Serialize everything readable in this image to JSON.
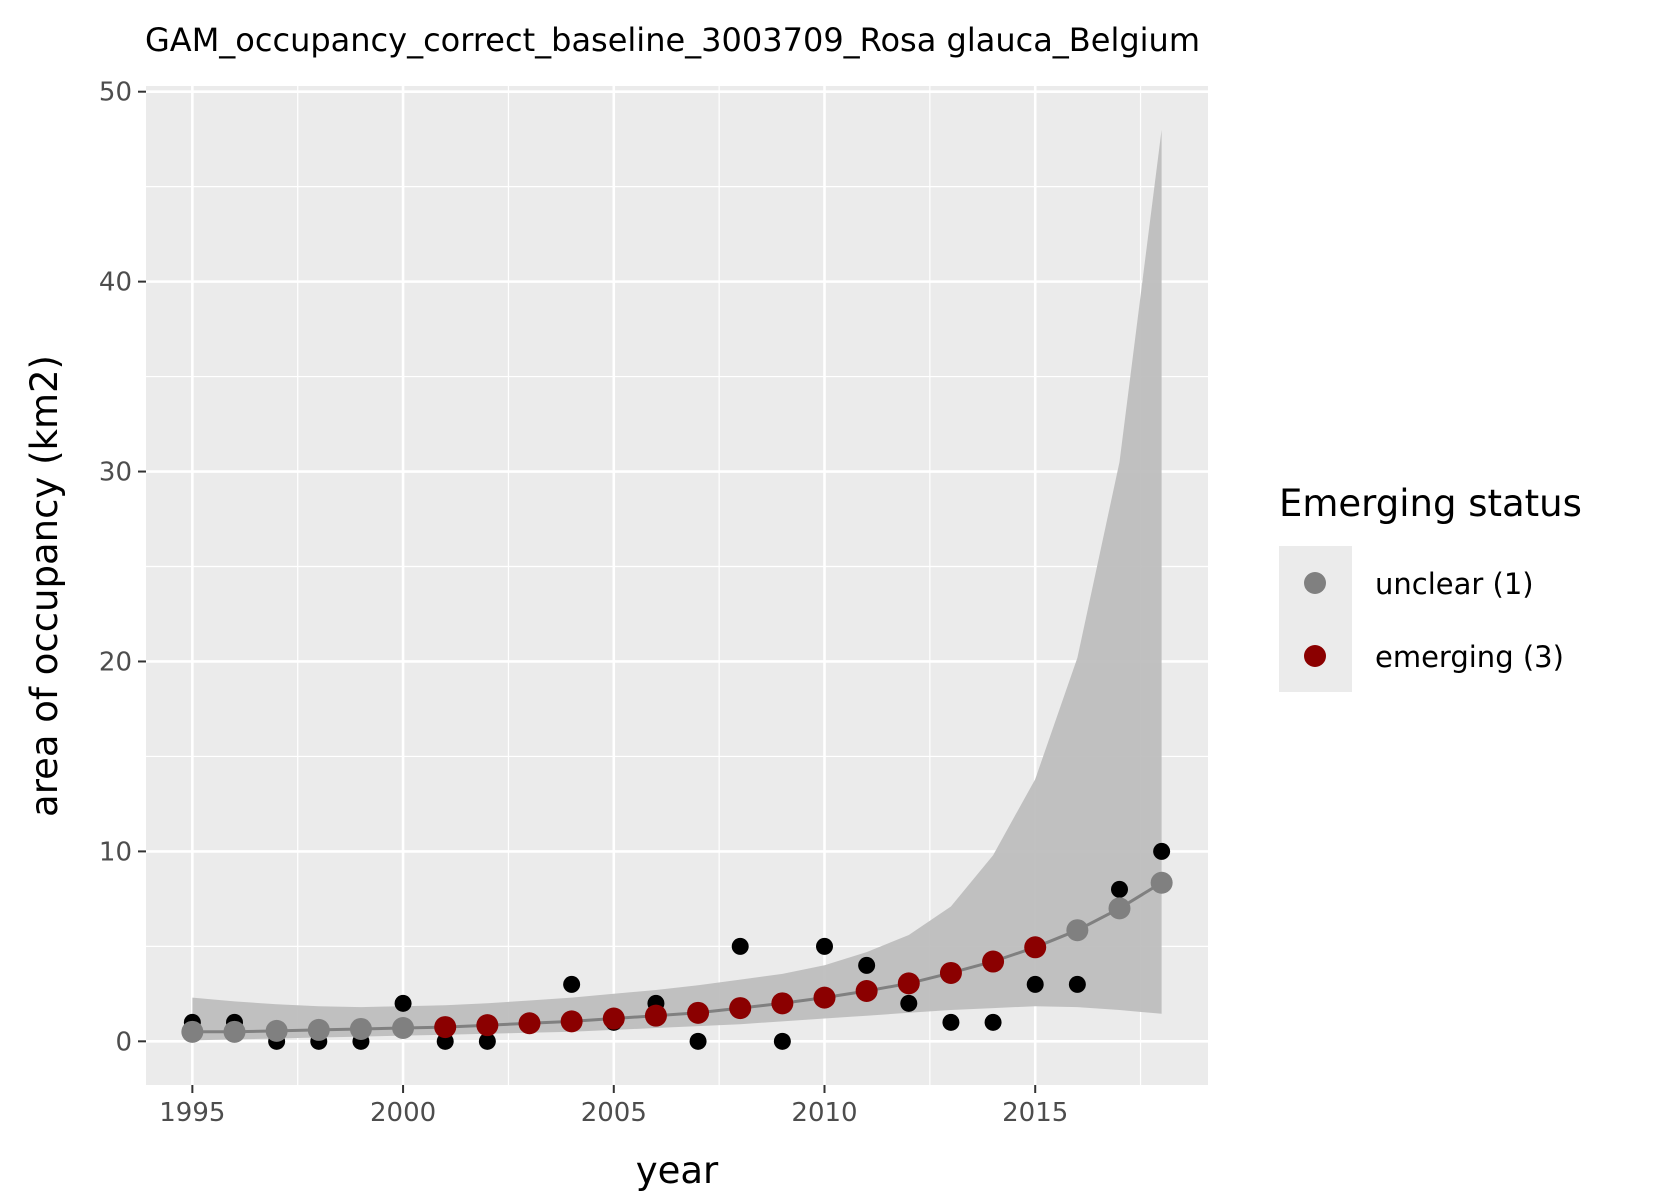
{
  "chart_data": {
    "type": "scatter",
    "title": "GAM_occupancy_correct_baseline_3003709_Rosa glauca_Belgium",
    "xlabel": "year",
    "ylabel": "area of occupancy (km2)",
    "xlim": [
      1993.9,
      2019.1
    ],
    "ylim": [
      -2.3,
      50.3
    ],
    "x_ticks": [
      1995,
      2000,
      2005,
      2010,
      2015
    ],
    "y_ticks": [
      0,
      10,
      20,
      30,
      40,
      50
    ],
    "grid": true,
    "legend_position": "right",
    "legend_title": "Emerging status",
    "colors": {
      "panel_background": "#EBEBEB",
      "grid": "#FFFFFF",
      "observed_points": "#000000",
      "fit_line": "#808080",
      "ribbon": "#BEBEBE",
      "unclear": "#808080",
      "emerging": "#8B0000"
    },
    "legend": [
      {
        "label": "unclear (1)",
        "color": "#808080"
      },
      {
        "label": "emerging (3)",
        "color": "#8B0000"
      }
    ],
    "observed": {
      "x": [
        1995,
        1996,
        1997,
        1998,
        1999,
        2000,
        2001,
        2002,
        2003,
        2004,
        2005,
        2006,
        2007,
        2008,
        2009,
        2010,
        2011,
        2012,
        2013,
        2014,
        2015,
        2016,
        2017,
        2018
      ],
      "y": [
        1,
        1,
        0,
        0,
        0,
        2,
        0,
        0,
        1,
        3,
        1,
        2,
        0,
        5,
        0,
        5,
        4,
        2,
        1,
        1,
        3,
        3,
        8,
        10
      ]
    },
    "fit": {
      "x": [
        1995,
        1996,
        1997,
        1998,
        1999,
        2000,
        2001,
        2002,
        2003,
        2004,
        2005,
        2006,
        2007,
        2008,
        2009,
        2010,
        2011,
        2012,
        2013,
        2014,
        2015,
        2016,
        2017,
        2018
      ],
      "y": [
        0.5,
        0.5,
        0.55,
        0.6,
        0.65,
        0.7,
        0.75,
        0.85,
        0.95,
        1.05,
        1.2,
        1.35,
        1.5,
        1.75,
        2.0,
        2.3,
        2.65,
        3.05,
        3.6,
        4.2,
        4.95,
        5.85,
        7.0,
        8.35
      ],
      "status": [
        "unclear",
        "unclear",
        "unclear",
        "unclear",
        "unclear",
        "unclear",
        "emerging",
        "emerging",
        "emerging",
        "emerging",
        "emerging",
        "emerging",
        "emerging",
        "emerging",
        "emerging",
        "emerging",
        "emerging",
        "emerging",
        "emerging",
        "emerging",
        "emerging",
        "unclear",
        "unclear",
        "unclear"
      ],
      "lower": [
        0.05,
        0.1,
        0.15,
        0.2,
        0.25,
        0.3,
        0.35,
        0.4,
        0.45,
        0.5,
        0.6,
        0.7,
        0.8,
        0.9,
        1.05,
        1.2,
        1.35,
        1.5,
        1.65,
        1.75,
        1.85,
        1.8,
        1.65,
        1.45
      ],
      "upper": [
        2.3,
        2.1,
        1.95,
        1.85,
        1.8,
        1.85,
        1.9,
        2.0,
        2.15,
        2.3,
        2.5,
        2.7,
        2.95,
        3.25,
        3.55,
        4.0,
        4.7,
        5.6,
        7.1,
        9.8,
        13.8,
        20.2,
        30.5,
        48.0
      ]
    }
  }
}
